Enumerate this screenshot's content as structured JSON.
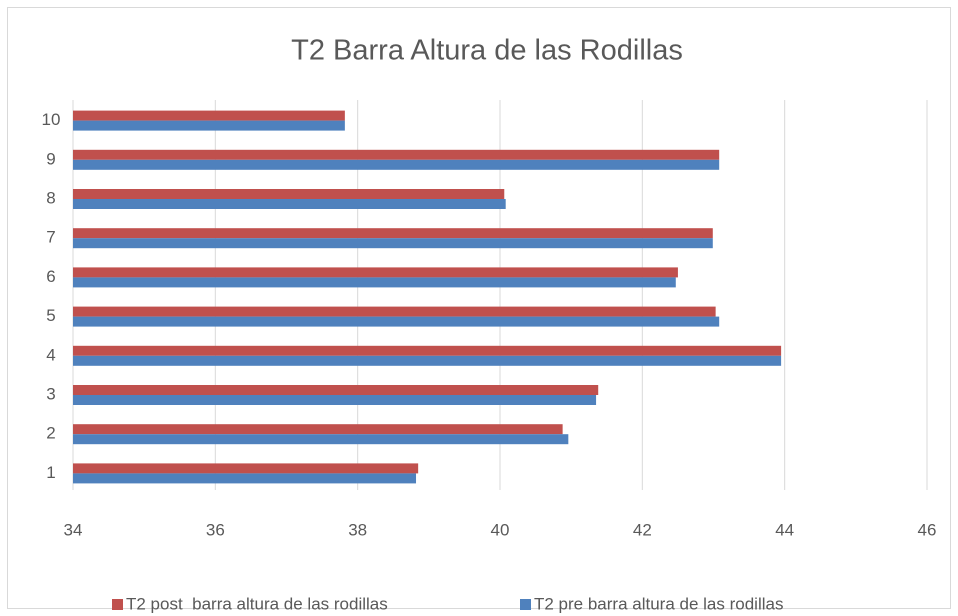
{
  "chart_data": {
    "type": "barh",
    "title": "T2 Barra Altura de las Rodillas",
    "categories": [
      "1",
      "2",
      "3",
      "4",
      "5",
      "6",
      "7",
      "8",
      "9",
      "10"
    ],
    "series": [
      {
        "name": "T2 post  barra altura de las rodillas",
        "color": "#c0504d",
        "values": [
          38.85,
          40.88,
          41.38,
          43.95,
          43.03,
          42.5,
          42.99,
          40.06,
          43.08,
          37.82
        ]
      },
      {
        "name": "T2 pre barra altura de las rodillas",
        "color": "#4f81bd",
        "values": [
          38.82,
          40.96,
          41.35,
          43.95,
          43.08,
          42.47,
          42.99,
          40.08,
          43.08,
          37.82
        ]
      }
    ],
    "xlim": [
      34,
      46
    ],
    "xticks": [
      34,
      36,
      38,
      40,
      42,
      44,
      46
    ],
    "grid": true,
    "legend": "bottom"
  }
}
